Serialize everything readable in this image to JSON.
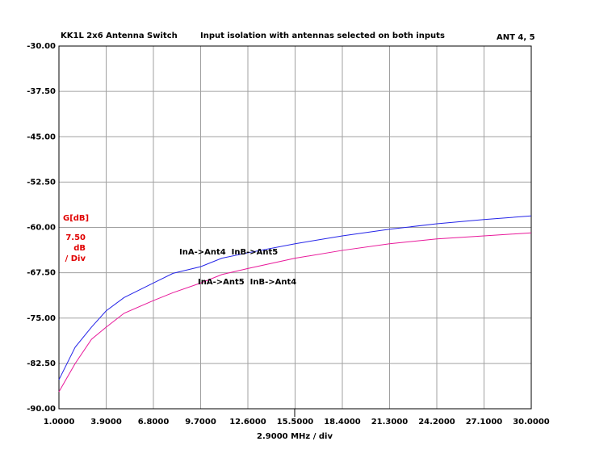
{
  "chart_data": {
    "type": "line",
    "title": "KK1L 2x6 Antenna Switch",
    "subtitle": "Input isolation with antennas selected on both inputs",
    "marker_label": "ANT 4, 5",
    "x_label": "2.9000 MHz / div",
    "scale_label": "G[dB]",
    "scale_value": "7.50",
    "scale_unit": "dB",
    "scale_div": "/ Div",
    "x": [
      1,
      2,
      3,
      3.9,
      5,
      6.8,
      8,
      9.7,
      11,
      12.6,
      15.5,
      18.4,
      21.3,
      24.2,
      27.1,
      30
    ],
    "series": [
      {
        "name": "InA->Ant4  InB->Ant5",
        "color": "#2424e8",
        "values": [
          -85.2,
          -79.8,
          -76.5,
          -73.8,
          -71.6,
          -69.2,
          -67.6,
          -66.5,
          -65.1,
          -64.2,
          -62.7,
          -61.4,
          -60.3,
          -59.4,
          -58.7,
          -58.1
        ]
      },
      {
        "name": "InA->Ant5  InB->Ant4",
        "color": "#e8189a",
        "values": [
          -87.2,
          -82.5,
          -78.5,
          -76.5,
          -74.2,
          -72.1,
          -70.8,
          -69.2,
          -67.8,
          -66.8,
          -65.1,
          -63.8,
          -62.7,
          -61.9,
          -61.4,
          -60.9
        ]
      }
    ],
    "xlim": [
      1,
      30
    ],
    "ylim": [
      -90,
      -30
    ],
    "xticks": [
      {
        "value": 1,
        "label": "1.0000"
      },
      {
        "value": 3.9,
        "label": "3.9000"
      },
      {
        "value": 6.8,
        "label": "6.8000"
      },
      {
        "value": 9.7,
        "label": "9.7000"
      },
      {
        "value": 12.6,
        "label": "12.6000"
      },
      {
        "value": 15.5,
        "label": "15.5000"
      },
      {
        "value": 18.4,
        "label": "18.4000"
      },
      {
        "value": 21.3,
        "label": "21.3000"
      },
      {
        "value": 24.2,
        "label": "24.2000"
      },
      {
        "value": 27.1,
        "label": "27.1000"
      },
      {
        "value": 30,
        "label": "30.0000"
      }
    ],
    "yticks": [
      {
        "value": -30,
        "label": "-30.00"
      },
      {
        "value": -37.5,
        "label": "-37.50"
      },
      {
        "value": -45,
        "label": "-45.00"
      },
      {
        "value": -52.5,
        "label": "-52.50"
      },
      {
        "value": -60,
        "label": "-60.00"
      },
      {
        "value": -67.5,
        "label": "-67.50"
      },
      {
        "value": -75,
        "label": "-75.00"
      },
      {
        "value": -82.5,
        "label": "-82.50"
      },
      {
        "value": -90,
        "label": "-90.00"
      }
    ],
    "grid": true
  }
}
